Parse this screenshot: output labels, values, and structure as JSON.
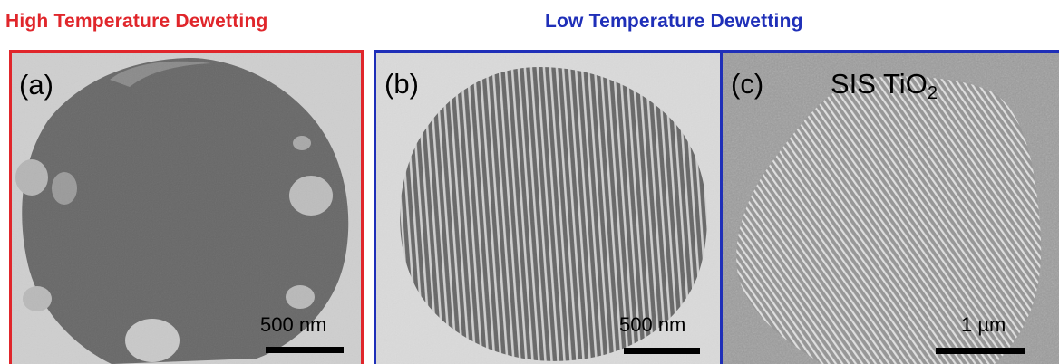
{
  "headers": {
    "high": {
      "text": "High Temperature Dewetting",
      "color": "#e0262b"
    },
    "low": {
      "text": "Low Temperature Dewetting",
      "color": "#1f2fb8"
    }
  },
  "panels": {
    "a": {
      "label": "(a)",
      "scale_label": "500 nm"
    },
    "b": {
      "label": "(b)",
      "scale_label": "500 nm"
    },
    "c": {
      "label": "(c)",
      "material_base": "SIS TiO",
      "material_sub": "2",
      "scale_label": "1 µm"
    }
  },
  "colors": {
    "red_frame": "#e0262b",
    "blue_frame": "#1f2fb8"
  }
}
